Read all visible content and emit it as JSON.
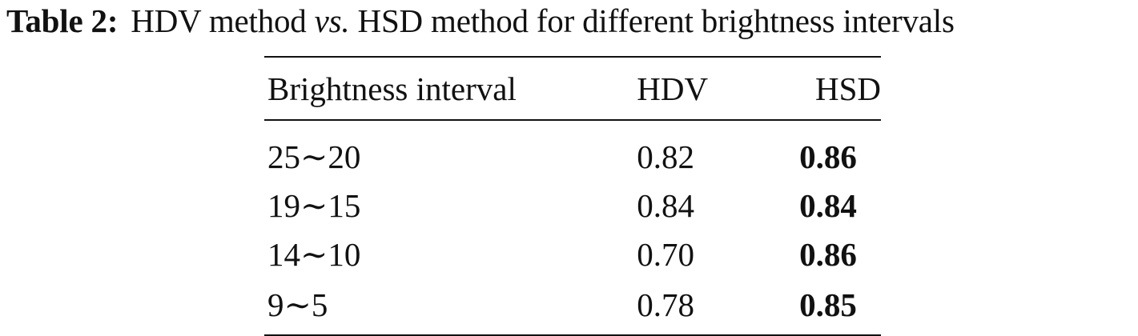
{
  "caption": {
    "label": "Table 2:",
    "text_part1": "HDV method",
    "text_italic": "vs.",
    "text_part2": "HSD method for different brightness intervals"
  },
  "table": {
    "headers": [
      "Brightness interval",
      "HDV",
      "HSD"
    ],
    "rows": [
      {
        "interval": "25∼20",
        "hdv": "0.82",
        "hsd": "0.86"
      },
      {
        "interval": "19∼15",
        "hdv": "0.84",
        "hsd": "0.84"
      },
      {
        "interval": "14∼10",
        "hdv": "0.70",
        "hsd": "0.86"
      },
      {
        "interval": "9∼5",
        "hdv": "0.78",
        "hsd": "0.85"
      }
    ],
    "bold_column": "HSD"
  }
}
